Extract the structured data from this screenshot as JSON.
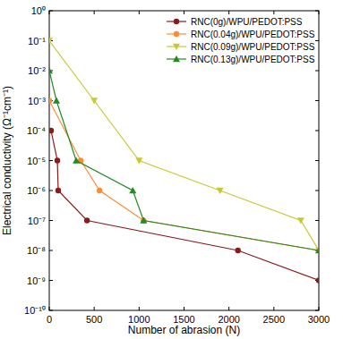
{
  "chart_data": {
    "type": "line",
    "x_label": "Number of abrasion (N)",
    "y_label": "Electrical conductivity (Ω⁻¹cm⁻¹)",
    "log": "y",
    "grid": false,
    "legend": "top-right",
    "xlim": [
      0,
      3000
    ],
    "xticks": [
      0,
      500,
      1000,
      1500,
      2000,
      2500,
      3000
    ],
    "ylim": [
      1e-10,
      1
    ],
    "yticks": [
      {
        "value": 1e-10,
        "label": "10⁻¹⁰"
      },
      {
        "value": 1e-09,
        "label": "10⁻⁹"
      },
      {
        "value": 1e-08,
        "label": "10⁻⁸"
      },
      {
        "value": 1e-07,
        "label": "10⁻⁷"
      },
      {
        "value": 1e-06,
        "label": "10⁻⁶"
      },
      {
        "value": 1e-05,
        "label": "10⁻⁵"
      },
      {
        "value": 0.0001,
        "label": "10⁻⁴"
      },
      {
        "value": 0.001,
        "label": "10⁻³"
      },
      {
        "value": 0.01,
        "label": "10⁻²"
      },
      {
        "value": 0.1,
        "label": "10⁻¹"
      },
      {
        "value": 1,
        "label": "10⁰"
      }
    ],
    "series": [
      {
        "name": "RNC(0g)/WPU/PEDOT:PSS",
        "color": "#8b1a1a",
        "marker": "circle",
        "x": [
          20,
          90,
          100,
          420,
          2100,
          3000
        ],
        "values": [
          0.0001,
          1e-05,
          1e-06,
          1e-07,
          1e-08,
          1e-09
        ]
      },
      {
        "name": "RNC(0.04g)/WPU/PEDOT:PSS",
        "color": "#ff8c33",
        "marker": "circle",
        "x": [
          0,
          350,
          560,
          1050,
          3000
        ],
        "values": [
          0.001,
          1e-05,
          1e-06,
          1e-07,
          1e-08
        ]
      },
      {
        "name": "RNC(0.09g)/WPU/PEDOT:PSS",
        "color": "#c8c830",
        "marker": "triangle-down",
        "x": [
          0,
          500,
          1000,
          1900,
          2800,
          3000
        ],
        "values": [
          0.1,
          0.001,
          1e-05,
          1e-06,
          1e-07,
          1e-08
        ]
      },
      {
        "name": "RNC(0.13g)/WPU/PEDOT:PSS",
        "color": "#228b22",
        "marker": "triangle-up",
        "x": [
          0,
          80,
          300,
          930,
          1050,
          3000
        ],
        "values": [
          0.01,
          0.001,
          1e-05,
          1e-06,
          1e-07,
          1e-08
        ]
      }
    ]
  }
}
